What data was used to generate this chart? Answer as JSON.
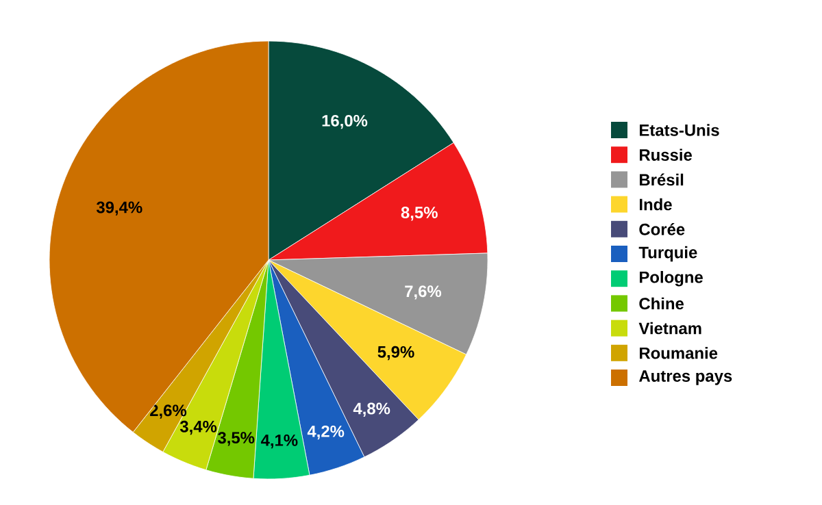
{
  "chart_data": {
    "type": "pie",
    "legend": "right",
    "categories": [
      "Etats-Unis",
      "Russie",
      "Brésil",
      "Inde",
      "Corée",
      "Turquie",
      "Pologne",
      "Chine",
      "Vietnam",
      "Roumanie",
      "Autres pays"
    ],
    "values": [
      16.0,
      8.5,
      7.6,
      5.9,
      4.8,
      4.2,
      4.1,
      3.5,
      3.4,
      2.6,
      39.4
    ],
    "value_labels": [
      "16,0%",
      "8,5%",
      "7,6%",
      "5,9%",
      "4,8%",
      "4,2%",
      "4,1%",
      "3,5%",
      "3,4%",
      "2,6%",
      "39,4%"
    ],
    "colors": [
      "#064a3c",
      "#f01a1c",
      "#969696",
      "#fdd62d",
      "#484b79",
      "#1a5fbf",
      "#00cc74",
      "#74c800",
      "#c8dc0c",
      "#d0a400",
      "#cc7000"
    ]
  }
}
